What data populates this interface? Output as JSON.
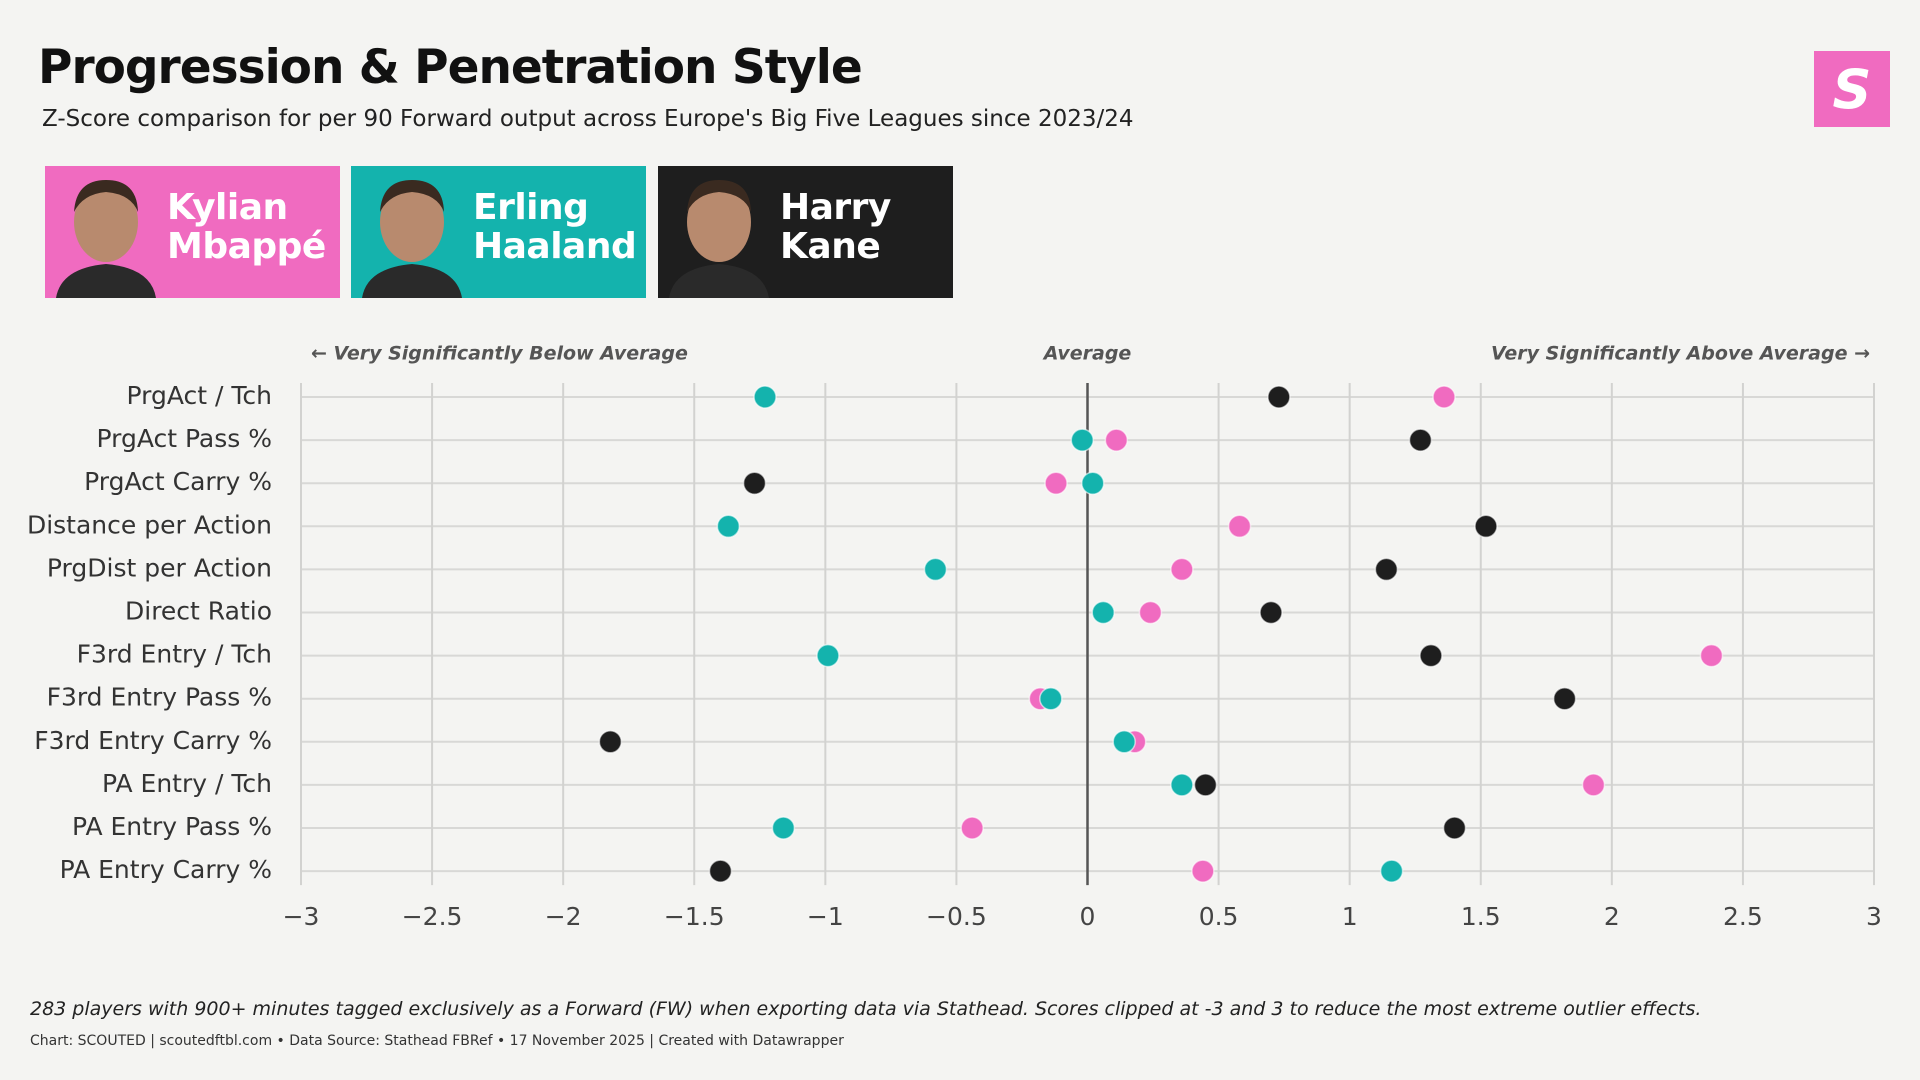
{
  "header": {
    "title": "Progression & Penetration Style",
    "subtitle": "Z-Score comparison for per 90 Forward output across Europe's Big Five Leagues since 2023/24",
    "logo_text": "S"
  },
  "chart_data": {
    "type": "dot",
    "annotations": {
      "left": "← Very Significantly Below Average",
      "center": "Average",
      "right": "Very Significantly Above Average →"
    },
    "categories": [
      "PrgAct / Tch",
      "PrgAct Pass %",
      "PrgAct Carry %",
      "Distance per Action",
      "PrgDist per Action",
      "Direct Ratio",
      "F3rd Entry / Tch",
      "F3rd Entry Pass %",
      "F3rd Entry Carry %",
      "PA Entry / Tch",
      "PA Entry Pass %",
      "PA Entry Carry %"
    ],
    "series": [
      {
        "name": "Kylian Mbappé",
        "color": "#f06bc0",
        "values": [
          1.36,
          0.11,
          -0.12,
          0.58,
          0.36,
          0.24,
          2.38,
          -0.18,
          0.18,
          1.93,
          -0.44,
          0.44
        ]
      },
      {
        "name": "Erling Haaland",
        "color": "#14b3ad",
        "values": [
          -1.23,
          -0.02,
          0.02,
          -1.37,
          -0.58,
          0.06,
          -0.99,
          -0.14,
          0.14,
          0.36,
          -1.16,
          1.16
        ]
      },
      {
        "name": "Harry Kane",
        "color": "#1e1e1e",
        "values": [
          0.73,
          1.27,
          -1.27,
          1.52,
          1.14,
          0.7,
          1.31,
          1.82,
          -1.82,
          0.45,
          1.4,
          -1.4
        ]
      }
    ],
    "xlim": [
      -3,
      3
    ],
    "xticks": [
      {
        "value": -3,
        "label": "−3"
      },
      {
        "value": -2.5,
        "label": "−2.5"
      },
      {
        "value": -2,
        "label": "−2"
      },
      {
        "value": -1.5,
        "label": "−1.5"
      },
      {
        "value": -1,
        "label": "−1"
      },
      {
        "value": -0.5,
        "label": "−0.5"
      },
      0,
      0.5,
      1,
      1.5,
      2,
      2.5,
      3
    ],
    "grid": true
  },
  "footer": {
    "note": "283 players with 900+ minutes tagged exclusively as a Forward (FW) when exporting data via Stathead. Scores clipped at -3 and 3 to reduce the most extreme outlier effects.",
    "credit": "Chart: SCOUTED | scoutedftbl.com • Data Source: Stathead FBRef • 17 November 2025 | Created with Datawrapper"
  }
}
